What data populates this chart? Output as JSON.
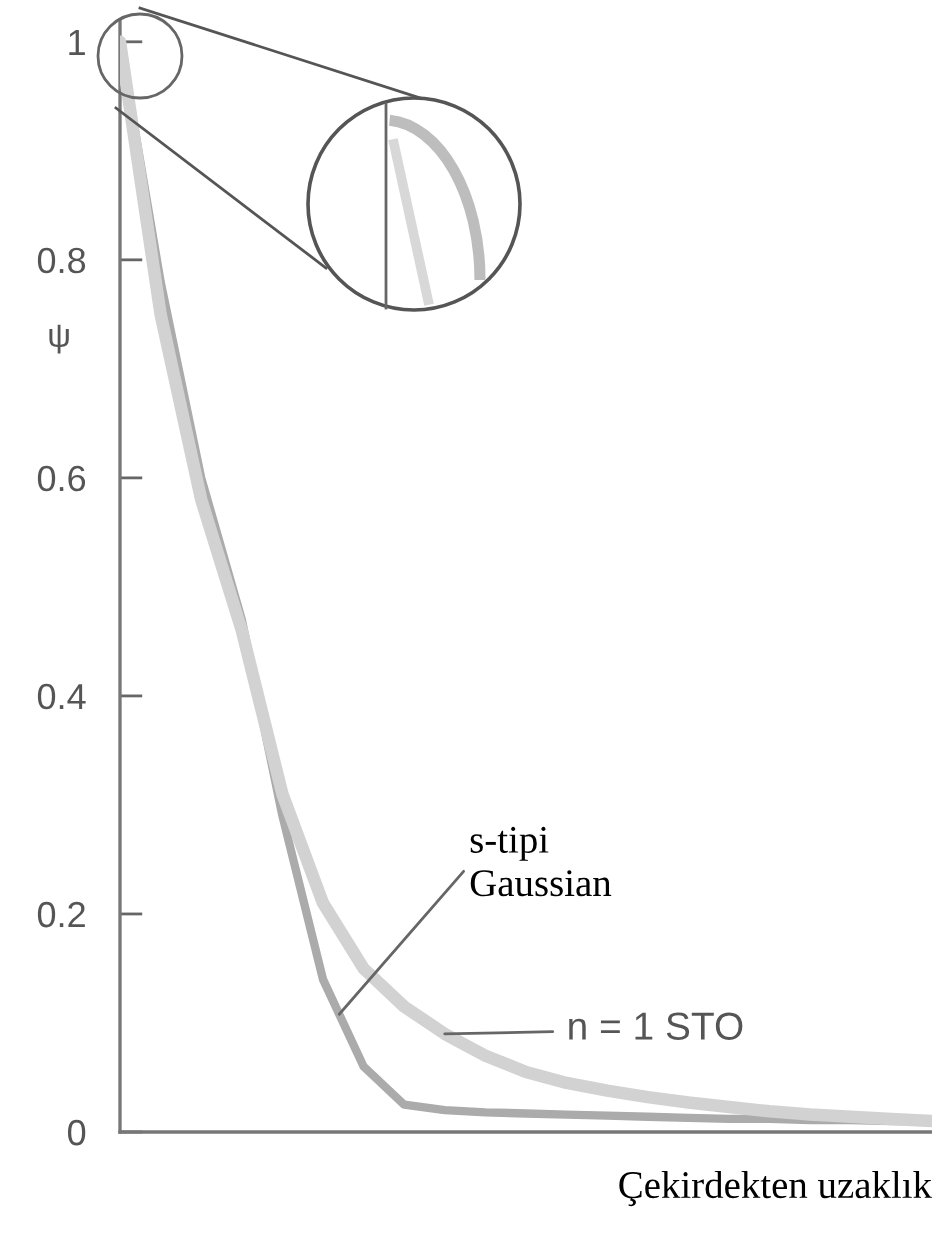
{
  "chart_data": {
    "type": "line",
    "xlabel": "Çekirdekten uzaklık",
    "ylabel": "ψ",
    "categories": [
      null,
      null,
      null,
      null,
      null,
      null,
      null,
      null,
      null,
      null,
      null,
      null,
      null,
      null,
      null,
      null,
      null,
      null,
      null,
      null,
      null
    ],
    "series": [
      {
        "color": "#d2d2d2",
        "values": [
          1.0,
          0.75,
          0.58,
          0.46,
          0.31,
          0.21,
          0.15,
          0.115,
          0.09,
          0.07,
          0.055,
          0.045,
          0.038,
          0.032,
          0.027,
          0.023,
          0.019,
          0.016,
          0.014,
          0.012,
          0.01
        ]
      },
      {
        "color": "#ababab",
        "values": [
          1.0,
          0.78,
          0.6,
          0.47,
          0.29,
          0.14,
          0.06,
          0.025,
          0.02,
          0.018,
          0.017,
          0.016,
          0.015,
          0.014,
          0.013,
          0.012,
          0.012,
          0.011,
          0.011,
          0.01,
          0.01
        ]
      }
    ],
    "annotations": [
      "s-tipi\nGaussian",
      "n = 1 STO"
    ],
    "ylim": [
      0,
      1.02
    ],
    "yticks": [
      0,
      0.2,
      0.4,
      0.6,
      0.8,
      1
    ],
    "grid": false,
    "legend": false,
    "marker": "none",
    "line_style": "solid",
    "tick_labels": "y"
  }
}
